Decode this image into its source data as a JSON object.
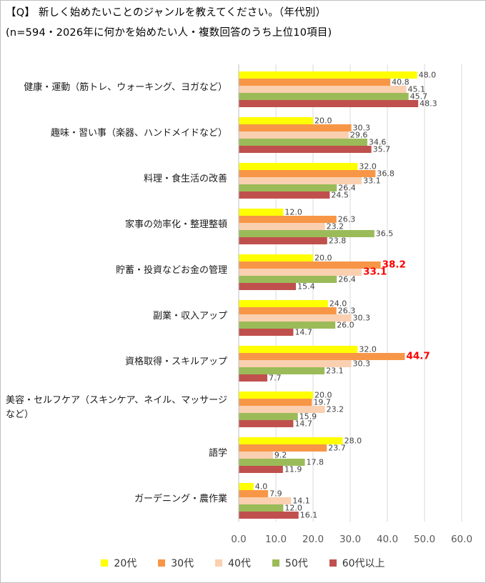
{
  "header": {
    "line1": "【Q】 新しく始めたいことのジャンルを教えてください。（年代別）",
    "line2": "(n=594・2026年に何かを始めたい人・複数回答のうち上位10項目)"
  },
  "chart_data": {
    "type": "bar",
    "orientation": "horizontal",
    "categories": [
      "健康・運動（筋トレ、ウォーキング、ヨガなど）",
      "趣味・習い事（楽器、ハンドメイドなど）",
      "料理・食生活の改善",
      "家事の効率化・整理整頓",
      "貯蓄・投資などお金の管理",
      "副業・収入アップ",
      "資格取得・スキルアップ",
      "美容・セルフケア（スキンケア、ネイル、マッサージなど）",
      "語学",
      "ガーデニング・農作業"
    ],
    "category_lines": [
      [
        "健康・運動（筋トレ、ウォーキング、ヨガなど）"
      ],
      [
        "趣味・習い事（楽器、ハンドメイドなど）"
      ],
      [
        "料理・食生活の改善"
      ],
      [
        "家事の効率化・整理整頓"
      ],
      [
        "貯蓄・投資などお金の管理"
      ],
      [
        "副業・収入アップ"
      ],
      [
        "資格取得・スキルアップ"
      ],
      [
        "美容・セルフケア（スキンケア、ネイル、マッサージ",
        "など）"
      ],
      [
        "語学"
      ],
      [
        "ガーデニング・農作業"
      ]
    ],
    "series": [
      {
        "name": "20代",
        "color": "#FFFF00",
        "values": [
          48.0,
          20.0,
          32.0,
          12.0,
          20.0,
          24.0,
          32.0,
          20.0,
          28.0,
          4.0
        ]
      },
      {
        "name": "30代",
        "color": "#F79646",
        "values": [
          40.8,
          30.3,
          36.8,
          26.3,
          38.2,
          26.3,
          44.7,
          19.7,
          23.7,
          7.9
        ]
      },
      {
        "name": "40代",
        "color": "#FAD0B0",
        "values": [
          45.1,
          29.6,
          33.1,
          23.2,
          33.1,
          30.3,
          30.3,
          23.2,
          9.2,
          14.1
        ]
      },
      {
        "name": "50代",
        "color": "#9BBB59",
        "values": [
          45.7,
          34.6,
          26.4,
          36.5,
          26.4,
          26.0,
          23.1,
          15.9,
          17.8,
          12.0
        ]
      },
      {
        "name": "60代以上",
        "color": "#C0504D",
        "values": [
          48.3,
          35.7,
          24.5,
          23.8,
          15.4,
          14.7,
          7.7,
          14.7,
          11.9,
          16.1
        ]
      }
    ],
    "xlim": [
      0,
      60
    ],
    "xticks": [
      "0.0",
      "10.0",
      "20.0",
      "30.0",
      "40.0",
      "50.0",
      "60.0"
    ],
    "grid": true,
    "legend_position": "bottom",
    "highlight_color": "#FF0000",
    "highlights": [
      {
        "category": 4,
        "series": 1
      },
      {
        "category": 4,
        "series": 2
      },
      {
        "category": 6,
        "series": 1
      }
    ],
    "xlabel": "",
    "ylabel": ""
  }
}
